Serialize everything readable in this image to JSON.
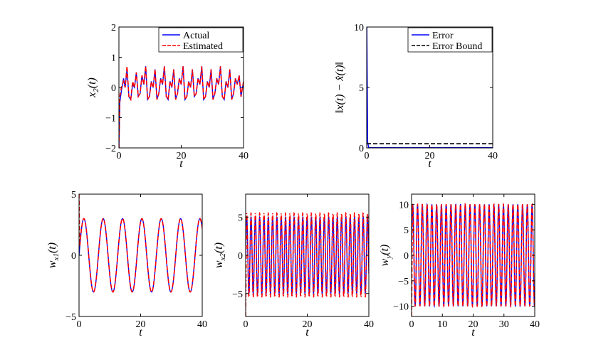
{
  "chart_data": [
    {
      "type": "line",
      "xlabel": "t",
      "ylabel": "x_2(t)",
      "xlim": [
        0,
        40
      ],
      "ylim": [
        -2,
        2
      ],
      "xticks": [
        "0",
        "20",
        "40"
      ],
      "yticks": [
        "−2",
        "−1",
        "0",
        "1",
        "2"
      ],
      "legend": {
        "position": "top-right",
        "entries": [
          "Actual",
          "Estimated"
        ]
      },
      "series": [
        {
          "name": "Actual",
          "color": "#0000ff",
          "style": "solid",
          "x": [
            0,
            0.3,
            0.8,
            1.5,
            2.0,
            2.6,
            3.2,
            3.8,
            4.4,
            5.0,
            5.6,
            6.2,
            6.8,
            7.4,
            8.0,
            8.6,
            9.2,
            9.8,
            10.4,
            11.0,
            11.6,
            12.2,
            12.8,
            13.4,
            14.0,
            14.6,
            15.2,
            15.8,
            16.4,
            17.0,
            17.6,
            18.2,
            18.8,
            19.4,
            20.0,
            20.6,
            21.2,
            21.8,
            22.4,
            23.0,
            23.6,
            24.2,
            24.8,
            25.4,
            26.0,
            26.6,
            27.2,
            27.8,
            28.4,
            29.0,
            29.6,
            30.2,
            30.8,
            31.4,
            32.0,
            32.6,
            33.2,
            33.8,
            34.4,
            35.0,
            35.6,
            36.2,
            36.8,
            37.4,
            38.0,
            38.6,
            39.2,
            40.0
          ],
          "y": [
            -2.0,
            -0.5,
            -0.1,
            0.3,
            0.0,
            0.6,
            -0.3,
            -0.4,
            0.1,
            0.0,
            0.5,
            -0.3,
            -0.2,
            0.4,
            0.1,
            0.7,
            -0.4,
            -0.3,
            0.2,
            0.0,
            0.6,
            -0.4,
            -0.2,
            0.3,
            0.1,
            0.7,
            -0.3,
            -0.4,
            0.2,
            0.0,
            0.6,
            -0.4,
            -0.2,
            0.3,
            0.1,
            0.7,
            -0.4,
            -0.3,
            0.2,
            0.0,
            0.6,
            -0.3,
            -0.2,
            0.3,
            0.1,
            0.7,
            -0.4,
            -0.3,
            0.2,
            0.0,
            0.6,
            -0.4,
            -0.2,
            0.3,
            0.1,
            0.7,
            -0.3,
            -0.4,
            0.2,
            0.0,
            0.6,
            -0.4,
            -0.2,
            0.3,
            0.1,
            0.4,
            -0.3,
            0.2
          ]
        },
        {
          "name": "Estimated",
          "color": "#ff0000",
          "style": "dashed",
          "x": [
            0,
            0.3,
            0.8,
            1.5,
            2.0,
            2.6,
            3.2,
            3.8,
            4.4,
            5.0,
            5.6,
            6.2,
            6.8,
            7.4,
            8.0,
            8.6,
            9.2,
            9.8,
            10.4,
            11.0,
            11.6,
            12.2,
            12.8,
            13.4,
            14.0,
            14.6,
            15.2,
            15.8,
            16.4,
            17.0,
            17.6,
            18.2,
            18.8,
            19.4,
            20.0,
            20.6,
            21.2,
            21.8,
            22.4,
            23.0,
            23.6,
            24.2,
            24.8,
            25.4,
            26.0,
            26.6,
            27.2,
            27.8,
            28.4,
            29.0,
            29.6,
            30.2,
            30.8,
            31.4,
            32.0,
            32.6,
            33.2,
            33.8,
            34.4,
            35.0,
            35.6,
            36.2,
            36.8,
            37.4,
            38.0,
            38.6,
            39.2,
            40.0
          ],
          "y": [
            -2.0,
            -0.3,
            0.0,
            0.2,
            0.0,
            0.7,
            -0.3,
            -0.4,
            0.2,
            0.0,
            0.5,
            -0.3,
            -0.2,
            0.4,
            0.1,
            0.7,
            -0.4,
            -0.3,
            0.2,
            0.0,
            0.6,
            -0.4,
            -0.2,
            0.3,
            0.1,
            0.7,
            -0.3,
            -0.4,
            0.2,
            0.0,
            0.6,
            -0.4,
            -0.2,
            0.3,
            0.1,
            0.7,
            -0.4,
            -0.3,
            0.2,
            0.0,
            0.6,
            -0.3,
            -0.2,
            0.3,
            0.1,
            0.7,
            -0.4,
            -0.3,
            0.2,
            0.0,
            0.6,
            -0.4,
            -0.2,
            0.3,
            0.1,
            0.7,
            -0.3,
            -0.4,
            0.2,
            0.0,
            0.6,
            -0.4,
            -0.2,
            0.3,
            0.1,
            0.4,
            -0.3,
            0.2
          ]
        }
      ]
    },
    {
      "type": "line",
      "xlabel": "t",
      "ylabel": "‖x(t) − x̂(t)‖",
      "xlim": [
        0,
        40
      ],
      "ylim": [
        0,
        10
      ],
      "xticks": [
        "0",
        "20",
        "40"
      ],
      "yticks": [
        "0",
        "5",
        "10"
      ],
      "legend": {
        "position": "top-right",
        "entries": [
          "Error",
          "Error Bound"
        ]
      },
      "series": [
        {
          "name": "Error",
          "color": "#0000ff",
          "style": "solid",
          "x": [
            0,
            0.05,
            0.3,
            0.6,
            1.0,
            40
          ],
          "y": [
            10,
            10,
            0.5,
            0.05,
            0.02,
            0.02
          ]
        },
        {
          "name": "Error Bound",
          "color": "#000000",
          "style": "dashed",
          "x": [
            0,
            40
          ],
          "y": [
            0.35,
            0.35
          ]
        }
      ]
    },
    {
      "type": "line",
      "xlabel": "t",
      "ylabel": "w_x1(t)",
      "xlim": [
        0,
        40
      ],
      "ylim": [
        -5,
        5
      ],
      "xticks": [
        "0",
        "20",
        "40"
      ],
      "yticks": [
        "−5",
        "0",
        "5"
      ],
      "series": [
        {
          "color": "#0000ff",
          "style": "solid",
          "amplitude": 3,
          "period": 6.28,
          "phase_deg": 0
        },
        {
          "color": "#ff0000",
          "style": "dashed",
          "amplitude": 3,
          "period": 6.28,
          "phase_deg": 0,
          "initial": 5
        }
      ]
    },
    {
      "type": "line",
      "xlabel": "t",
      "ylabel": "w_x2(t)",
      "xlim": [
        0,
        40
      ],
      "ylim": [
        -8,
        8
      ],
      "xticks": [
        "0",
        "20",
        "40"
      ],
      "yticks": [
        "−5",
        "0",
        "5"
      ],
      "series": [
        {
          "color": "#0000ff",
          "style": "solid",
          "amplitude": 5,
          "period": 1.4,
          "phase_deg": 0
        },
        {
          "color": "#ff0000",
          "style": "dashdot",
          "amplitude": 5.5,
          "period": 1.4,
          "phase_deg": 0,
          "initial": -8
        }
      ]
    },
    {
      "type": "line",
      "xlabel": "t",
      "ylabel": "w_y(t)",
      "xlim": [
        0,
        40
      ],
      "ylim": [
        -12,
        12
      ],
      "xticks": [
        "0",
        "10",
        "20",
        "30",
        "40"
      ],
      "yticks": [
        "−10",
        "−5",
        "0",
        "5",
        "10"
      ],
      "series": [
        {
          "color": "#0000ff",
          "style": "solid",
          "amplitude": 10,
          "period": 1.55,
          "phase_deg": 0
        },
        {
          "color": "#ff0000",
          "style": "dashed",
          "amplitude": 10,
          "period": 1.55,
          "phase_deg": 0,
          "initial": -12
        }
      ]
    }
  ]
}
